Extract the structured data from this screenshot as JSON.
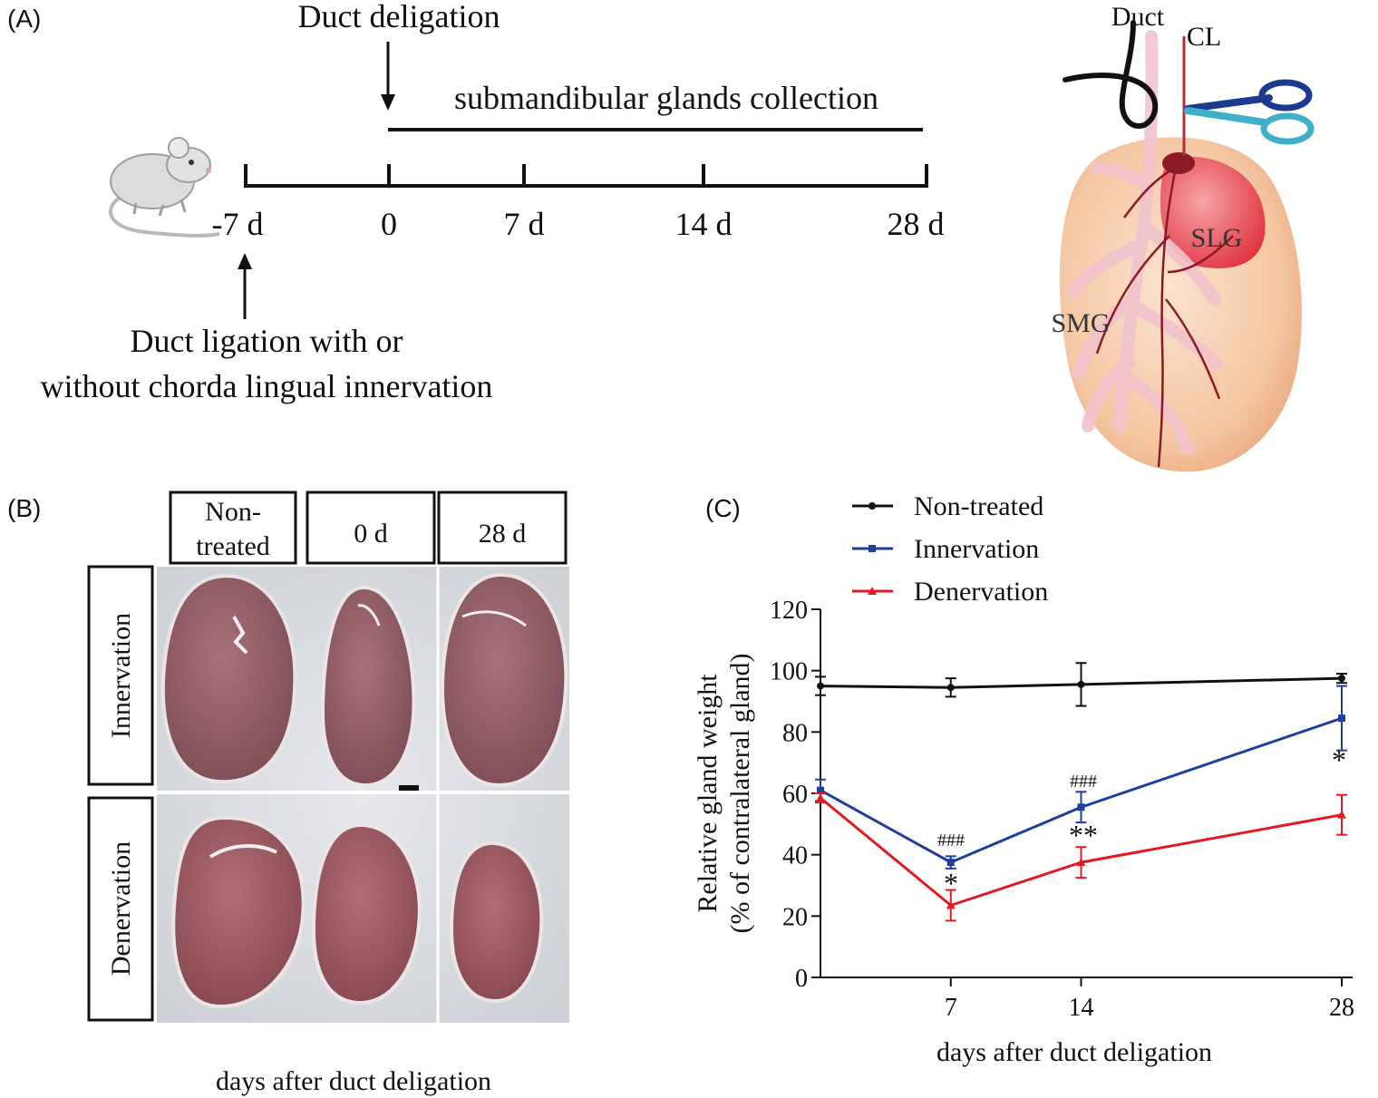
{
  "panelA": {
    "label": "(A)",
    "duct_deligation": "Duct deligation",
    "collection": "submandibular glands collection",
    "ticks": [
      "-7 d",
      "0",
      "7 d",
      "14 d",
      "28 d"
    ],
    "ligation_line1": "Duct ligation with or",
    "ligation_line2": "without chorda lingual innervation",
    "diagram": {
      "duct": "Duct",
      "cl": "CL",
      "slg": "SLG",
      "smg": "SMG"
    }
  },
  "panelB": {
    "label": "(B)",
    "col1_line1": "Non-",
    "col1_line2": "treated",
    "col2": "0 d",
    "col3": "28 d",
    "row1": "Innervation",
    "row2": "Denervation",
    "caption": "days after duct deligation"
  },
  "panelC": {
    "label": "(C)",
    "ylabel_line1": "Relative gland weight",
    "ylabel_line2": "(% of contralateral gland)",
    "annotations": {
      "hash7": "###",
      "star7": "*",
      "hash14": "###",
      "star14": "**",
      "star28": "*"
    }
  },
  "colors": {
    "non_treated": "#111111",
    "innervation": "#1f3f9a",
    "denervation": "#e01b22"
  },
  "chart_data": {
    "type": "line",
    "xlabel": "days after duct deligation",
    "ylabel": "Relative gland weight (% of contralateral gland)",
    "x": [
      0,
      7,
      14,
      28
    ],
    "x_tick_labels": [
      "7",
      "14",
      "28"
    ],
    "y_ticks": [
      0,
      20,
      40,
      60,
      80,
      100,
      120
    ],
    "ylim": [
      0,
      120
    ],
    "legend_position": "top",
    "series": [
      {
        "name": "Non-treated",
        "color": "#111111",
        "marker": "circle",
        "values": [
          95,
          94.5,
          95.5,
          97.5
        ],
        "errors": [
          3,
          3,
          7,
          1.5
        ]
      },
      {
        "name": "Innervation",
        "color": "#1f3f9a",
        "marker": "square",
        "values": [
          61,
          37.5,
          55.5,
          84.5
        ],
        "errors": [
          3.5,
          2,
          5,
          10.5
        ]
      },
      {
        "name": "Denervation",
        "color": "#e01b22",
        "marker": "triangle",
        "values": [
          58.5,
          23.5,
          37.5,
          53
        ],
        "errors": [
          1.5,
          5,
          5,
          6.5
        ]
      }
    ]
  }
}
